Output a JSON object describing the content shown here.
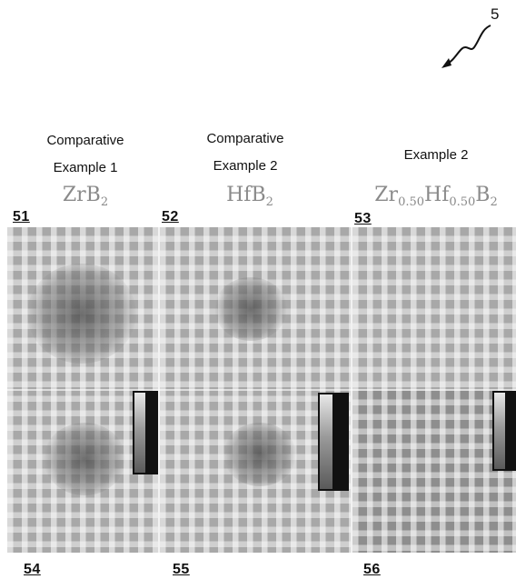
{
  "figure_number": "5",
  "columns": [
    {
      "title_line1": "Comparative",
      "title_line2": "Example 1",
      "formula": "ZrB",
      "formula_sub": "2",
      "ref_top": "51",
      "ref_bottom": "54"
    },
    {
      "title_line1": "Comparative",
      "title_line2": "Example 2",
      "formula": "HfB",
      "formula_sub": "2",
      "ref_top": "52",
      "ref_bottom": "55"
    },
    {
      "title_line1": "",
      "title_line2": "Example 2",
      "formula_parts": [
        "Zr",
        "0.50",
        "Hf",
        "0.50",
        "B",
        "2"
      ],
      "ref_top": "53",
      "ref_bottom": "56"
    }
  ],
  "colors": {
    "panel": "#a8a8a8",
    "formula": "#8a8a8a",
    "colorbar_frame": "#111111"
  }
}
